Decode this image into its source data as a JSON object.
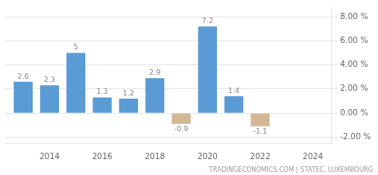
{
  "chart_data": {
    "type": "bar",
    "x": [
      2013,
      2014,
      2015,
      2016,
      2017,
      2018,
      2019,
      2020,
      2021,
      2022,
      2023
    ],
    "values": [
      2.6,
      2.3,
      5.0,
      1.3,
      1.2,
      2.9,
      -0.9,
      7.2,
      1.4,
      -1.1,
      null
    ],
    "colors": [
      "#5b9bd5",
      "#5b9bd5",
      "#5b9bd5",
      "#5b9bd5",
      "#5b9bd5",
      "#5b9bd5",
      "#d4b896",
      "#5b9bd5",
      "#5b9bd5",
      "#d4b896",
      null
    ],
    "xlim": [
      2012.3,
      2024.7
    ],
    "xticks": [
      2014,
      2016,
      2018,
      2020,
      2022,
      2024
    ],
    "ylim": [
      -2.5,
      8.8
    ],
    "yticks": [
      {
        "value": -2,
        "label": "-2.00 %"
      },
      {
        "value": 0,
        "label": "0.00 %"
      },
      {
        "value": 2,
        "label": "2.00 %"
      },
      {
        "value": 4,
        "label": "4.00 %"
      },
      {
        "value": 6,
        "label": "6.00 %"
      },
      {
        "value": 8,
        "label": "8.00 %"
      }
    ],
    "grid": true,
    "data_labels": true,
    "annotations": [
      "TRADINGECONOMICS.COM | STATEC, LUXEMBOURG"
    ]
  }
}
